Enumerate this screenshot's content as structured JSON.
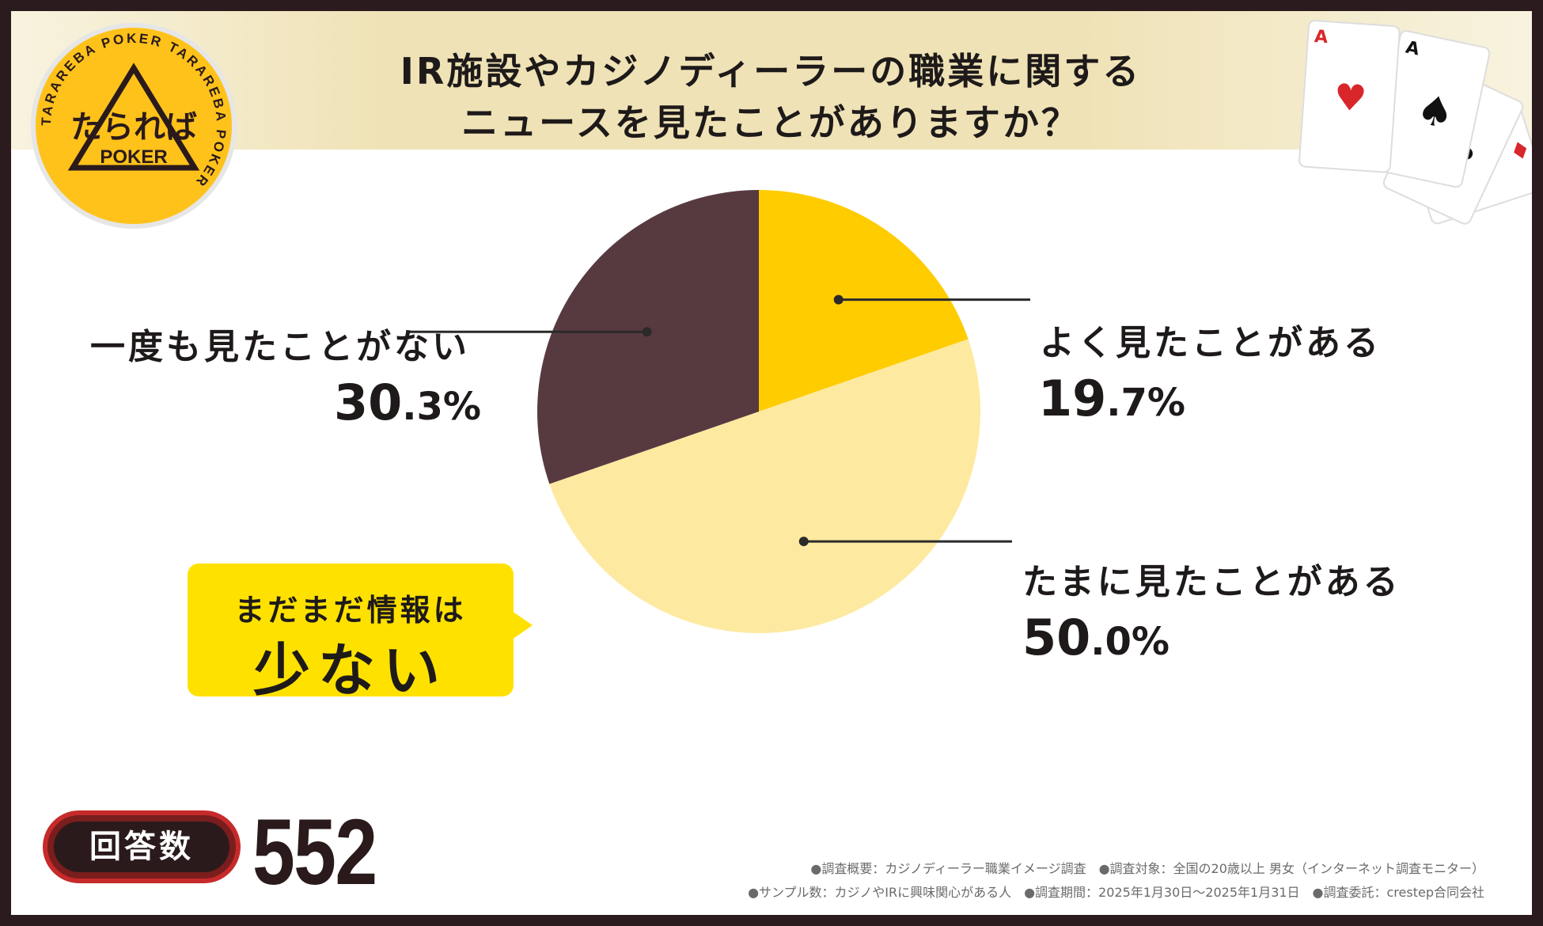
{
  "header": {
    "title_line1": "IR施設やカジノディーラーの職業に関する",
    "title_line2": "ニュースを見たことがありますか？"
  },
  "logo": {
    "main_text": "たられば",
    "sub_text": "POKER",
    "ring_text": "TARAREBA POKER TARAREBA POKER"
  },
  "chart_data": {
    "type": "pie",
    "title": "IR施設やカジノディーラーの職業に関するニュースを見たことがありますか？",
    "slices": [
      {
        "label": "よく見たことがある",
        "value": 19.7,
        "display_int": "19",
        "display_dec": ".7%",
        "color": "#ffcc00"
      },
      {
        "label": "たまに見たことがある",
        "value": 50.0,
        "display_int": "50",
        "display_dec": ".0%",
        "color": "#fdeaa0"
      },
      {
        "label": "一度も見たことがない",
        "value": 30.3,
        "display_int": "30",
        "display_dec": ".3%",
        "color": "#573a40"
      }
    ],
    "start_angle": "12 o'clock",
    "direction": "clockwise"
  },
  "callout": {
    "line1": "まだまだ情報は",
    "line2": "少ない"
  },
  "respondents": {
    "label": "回答数",
    "count": "552"
  },
  "notes": {
    "line1": "●調査概要：カジノディーラー職業イメージ調査　●調査対象：全国の20歳以上 男女（インターネット調査モニター）",
    "line2": "●サンプル数：カジノやIRに興味関心がある人　●調査期間：2025年1月30日～2025年1月31日　●調査委託：crestep合同会社"
  },
  "colors": {
    "frame": "#2b1a1e",
    "banner": "#efe2b6",
    "accent": "#ffe100",
    "badge": "#c62a2a"
  }
}
